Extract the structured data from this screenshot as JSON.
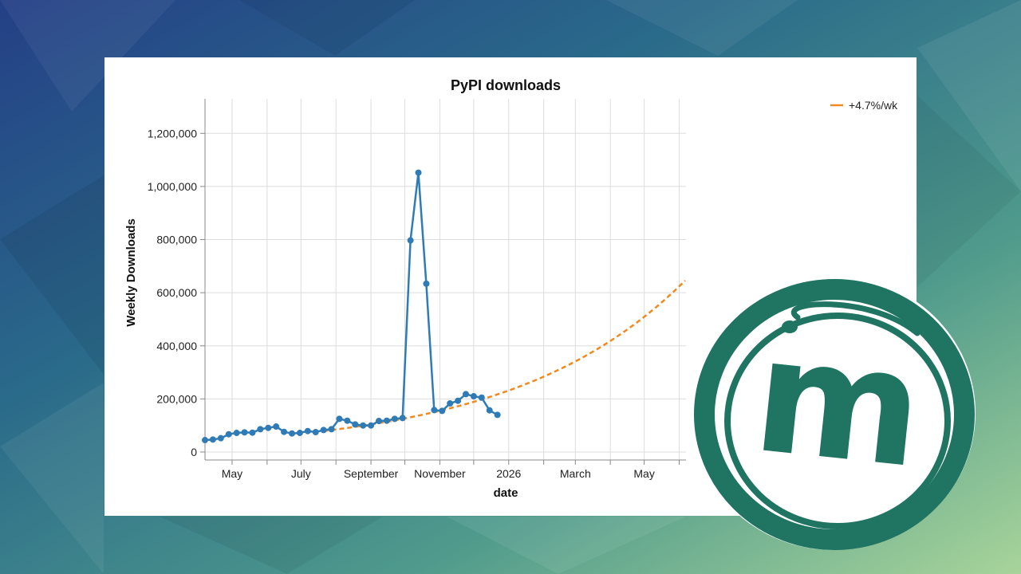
{
  "chart_data": {
    "type": "line",
    "title": "PyPI downloads",
    "xlabel": "date",
    "ylabel": "Weekly Downloads",
    "x_ticks": [
      "May",
      "July",
      "September",
      "November",
      "2026",
      "March",
      "May"
    ],
    "x_tick_dates": [
      "2025-05-01",
      "2025-07-01",
      "2025-09-01",
      "2025-11-01",
      "2026-01-01",
      "2026-03-01",
      "2026-05-01"
    ],
    "x_range": [
      "2025-04-07",
      "2026-06-07"
    ],
    "y_ticks": [
      0,
      200000,
      400000,
      600000,
      800000,
      1000000,
      1200000
    ],
    "y_tick_labels": [
      "0",
      "200,000",
      "400,000",
      "600,000",
      "800,000",
      "1,000,000",
      "1,200,000"
    ],
    "ylim": [
      -30000,
      1330000
    ],
    "grid": true,
    "legend_position": "top-right",
    "series": [
      {
        "color": "#2f7bb5",
        "style": "solid-with-markers",
        "points": [
          [
            "2025-04-07",
            45000
          ],
          [
            "2025-04-14",
            47000
          ],
          [
            "2025-04-21",
            52000
          ],
          [
            "2025-04-28",
            67000
          ],
          [
            "2025-05-05",
            72000
          ],
          [
            "2025-05-12",
            74000
          ],
          [
            "2025-05-19",
            73000
          ],
          [
            "2025-05-26",
            86000
          ],
          [
            "2025-06-02",
            91000
          ],
          [
            "2025-06-09",
            96000
          ],
          [
            "2025-06-16",
            76000
          ],
          [
            "2025-06-23",
            70000
          ],
          [
            "2025-06-30",
            72000
          ],
          [
            "2025-07-07",
            79000
          ],
          [
            "2025-07-14",
            75000
          ],
          [
            "2025-07-21",
            83000
          ],
          [
            "2025-07-28",
            86000
          ],
          [
            "2025-08-04",
            125000
          ],
          [
            "2025-08-11",
            118000
          ],
          [
            "2025-08-18",
            104000
          ],
          [
            "2025-08-25",
            100000
          ],
          [
            "2025-09-01",
            100000
          ],
          [
            "2025-09-08",
            117000
          ],
          [
            "2025-09-15",
            118000
          ],
          [
            "2025-09-22",
            125000
          ],
          [
            "2025-09-29",
            128000
          ],
          [
            "2025-10-06",
            797000
          ],
          [
            "2025-10-13",
            1052000
          ],
          [
            "2025-10-20",
            634000
          ],
          [
            "2025-10-27",
            158000
          ],
          [
            "2025-11-03",
            155000
          ],
          [
            "2025-11-10",
            183000
          ],
          [
            "2025-11-17",
            193000
          ],
          [
            "2025-11-24",
            218000
          ],
          [
            "2025-12-01",
            210000
          ],
          [
            "2025-12-08",
            205000
          ],
          [
            "2025-12-15",
            157000
          ],
          [
            "2025-12-22",
            140000
          ]
        ]
      },
      {
        "name": "+4.7%/wk",
        "color": "#f2891e",
        "style": "dashed",
        "x_start": "2025-07-21",
        "x_end": "2026-06-07",
        "y_start": 79000,
        "weekly_growth": 0.047
      }
    ]
  },
  "logo": {
    "text": "m",
    "color": "#1f7462"
  }
}
